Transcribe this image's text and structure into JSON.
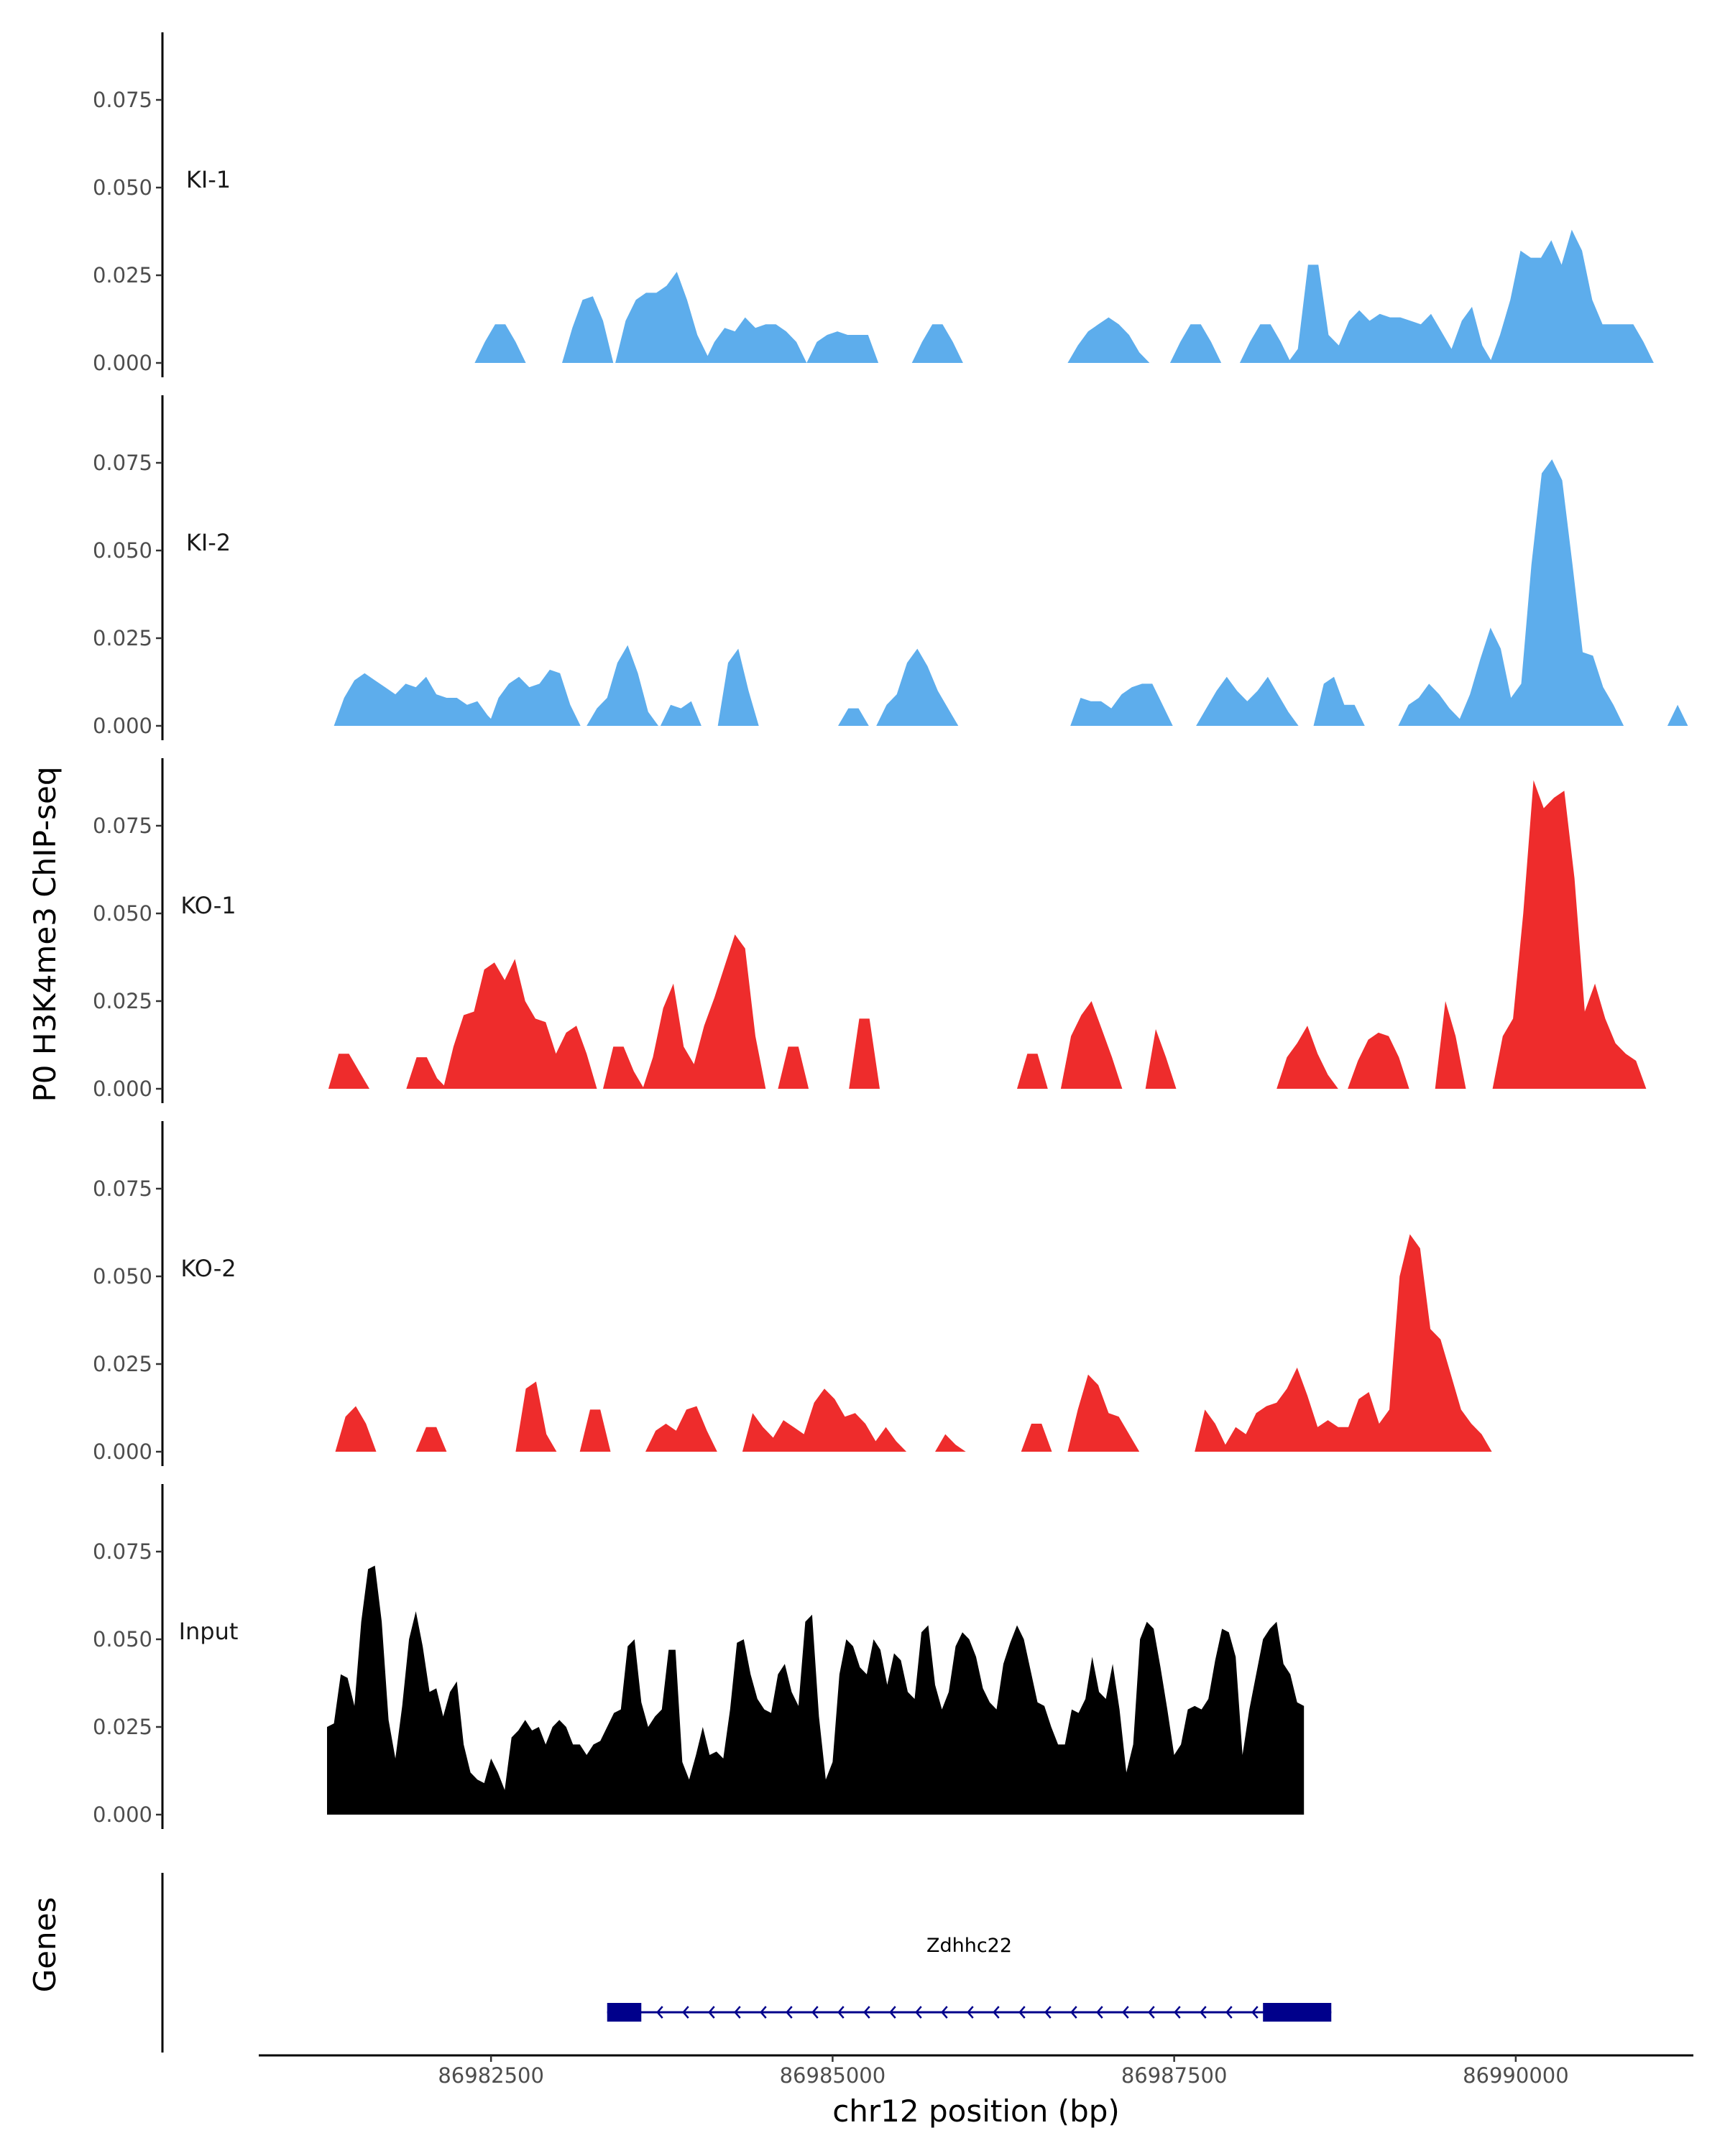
{
  "chart_data": {
    "type": "area",
    "ylabel": "P0 H3K4me3 ChIP-seq",
    "xlabel": "chr12 position (bp)",
    "gene_track_label": "Genes",
    "xlim": [
      86980800,
      86991300
    ],
    "x_ticks": [
      86982500,
      86985000,
      86987500,
      86990000
    ],
    "x_tick_labels": [
      "86982500",
      "86985000",
      "86987500",
      "86990000"
    ],
    "ylim": [
      0,
      0.095
    ],
    "y_ticks": [
      0,
      0.025,
      0.05,
      0.075
    ],
    "y_tick_labels": [
      "0.000",
      "0.025",
      "0.050",
      "0.075"
    ],
    "colors": {
      "KI": "#5DADEC",
      "KO": "#EE2C2C",
      "Input": "#000000",
      "gene": "#00008B"
    },
    "series": [
      {
        "name": "KI-1",
        "color": "#5DADEC",
        "segments": [
          {
            "x0": 86982380,
            "dx": 75,
            "values": [
              0.0,
              0.006,
              0.011,
              0.011,
              0.006,
              0.0
            ]
          },
          {
            "x0": 86983020,
            "dx": 75,
            "values": [
              0.0,
              0.01,
              0.018,
              0.019,
              0.012,
              0.0
            ]
          },
          {
            "x0": 86983410,
            "dx": 75,
            "values": [
              0.0,
              0.012,
              0.018,
              0.02,
              0.02,
              0.022,
              0.026,
              0.018,
              0.008,
              0.002,
              0.0
            ]
          },
          {
            "x0": 86984060,
            "dx": 75,
            "values": [
              0.0,
              0.006,
              0.01,
              0.009,
              0.013,
              0.01,
              0.011,
              0.011,
              0.009,
              0.006,
              0.0
            ]
          },
          {
            "x0": 86984810,
            "dx": 75,
            "values": [
              0.0,
              0.006,
              0.008,
              0.009,
              0.008,
              0.008,
              0.008,
              0.0
            ]
          },
          {
            "x0": 86985580,
            "dx": 75,
            "values": [
              0.0,
              0.006,
              0.011,
              0.011,
              0.006,
              0.0
            ]
          },
          {
            "x0": 86986720,
            "dx": 75,
            "values": [
              0.0,
              0.005,
              0.009,
              0.011,
              0.013,
              0.011,
              0.008,
              0.003,
              0.0
            ]
          },
          {
            "x0": 86987470,
            "dx": 75,
            "values": [
              0.0,
              0.006,
              0.011,
              0.011,
              0.006,
              0.0
            ]
          },
          {
            "x0": 86987980,
            "dx": 75,
            "values": [
              0.0,
              0.006,
              0.011,
              0.011,
              0.006,
              0.0
            ]
          },
          {
            "x0": 86988330,
            "dx": 75,
            "values": [
              0.0,
              0.004,
              0.028,
              0.028,
              0.008,
              0.005,
              0.012,
              0.015,
              0.012,
              0.014,
              0.013,
              0.013,
              0.012,
              0.011,
              0.014,
              0.009,
              0.004,
              0.012,
              0.016,
              0.005,
              0.0
            ]
          },
          {
            "x0": 86989810,
            "dx": 75,
            "values": [
              0.0,
              0.008,
              0.018,
              0.032,
              0.03,
              0.03,
              0.035,
              0.028,
              0.038,
              0.032,
              0.018,
              0.011,
              0.011,
              0.011,
              0.011,
              0.006,
              0.0
            ]
          }
        ]
      },
      {
        "name": "KI-2",
        "color": "#5DADEC",
        "segments": [
          {
            "x0": 86981350,
            "dx": 75,
            "values": [
              0.0,
              0.008,
              0.013,
              0.015,
              0.013,
              0.011,
              0.009,
              0.012,
              0.011,
              0.014,
              0.009,
              0.008,
              0.008,
              0.006,
              0.007,
              0.003,
              0.0
            ]
          },
          {
            "x0": 86982480,
            "dx": 75,
            "values": [
              0.0,
              0.008,
              0.012,
              0.014,
              0.011,
              0.012,
              0.016,
              0.015,
              0.006,
              0.0
            ]
          },
          {
            "x0": 86983200,
            "dx": 75,
            "values": [
              0.0,
              0.005,
              0.008,
              0.018,
              0.023,
              0.015,
              0.004,
              0.0
            ]
          },
          {
            "x0": 86983740,
            "dx": 75,
            "values": [
              0.0,
              0.006,
              0.005,
              0.007,
              0.0
            ]
          },
          {
            "x0": 86984160,
            "dx": 75,
            "values": [
              0.0,
              0.018,
              0.022,
              0.01,
              0.0
            ]
          },
          {
            "x0": 86985040,
            "dx": 75,
            "values": [
              0.0,
              0.005,
              0.005,
              0.0
            ]
          },
          {
            "x0": 86985320,
            "dx": 75,
            "values": [
              0.0,
              0.006,
              0.009,
              0.018,
              0.022,
              0.017,
              0.01,
              0.005,
              0.0
            ]
          },
          {
            "x0": 86986740,
            "dx": 75,
            "values": [
              0.0,
              0.008,
              0.007,
              0.007,
              0.005,
              0.009,
              0.011,
              0.012,
              0.012,
              0.006,
              0.0
            ]
          },
          {
            "x0": 86987660,
            "dx": 75,
            "values": [
              0.0,
              0.005,
              0.01,
              0.014,
              0.01,
              0.007,
              0.01,
              0.014,
              0.009,
              0.004,
              0.0
            ]
          },
          {
            "x0": 86988520,
            "dx": 75,
            "values": [
              0.0,
              0.012,
              0.014,
              0.006,
              0.006,
              0.0
            ]
          },
          {
            "x0": 86989140,
            "dx": 75,
            "values": [
              0.0,
              0.006,
              0.008,
              0.012,
              0.009,
              0.005,
              0.002,
              0.009,
              0.019,
              0.028,
              0.022,
              0.008,
              0.012,
              0.046,
              0.072,
              0.076,
              0.07,
              0.046,
              0.021,
              0.02,
              0.011,
              0.006,
              0.0
            ]
          },
          {
            "x0": 86991110,
            "dx": 75,
            "values": [
              0.0,
              0.006,
              0.0
            ]
          }
        ]
      },
      {
        "name": "KO-1",
        "color": "#EE2C2C",
        "segments": [
          {
            "x0": 86981310,
            "dx": 75,
            "values": [
              0.0,
              0.01,
              0.01,
              0.005,
              0.0
            ]
          },
          {
            "x0": 86981880,
            "dx": 75,
            "values": [
              0.0,
              0.009,
              0.009,
              0.003,
              0.0
            ]
          },
          {
            "x0": 86982150,
            "dx": 75,
            "values": [
              0.0,
              0.012,
              0.021,
              0.022,
              0.034,
              0.036,
              0.031,
              0.037,
              0.025,
              0.02,
              0.019,
              0.01,
              0.016,
              0.018,
              0.01,
              0.0
            ]
          },
          {
            "x0": 86983320,
            "dx": 75,
            "values": [
              0.0,
              0.012,
              0.012,
              0.005,
              0.0
            ]
          },
          {
            "x0": 86983610,
            "dx": 75,
            "values": [
              0.0,
              0.009,
              0.023,
              0.03,
              0.012,
              0.007,
              0.018,
              0.026,
              0.035,
              0.044,
              0.04,
              0.015,
              0.0
            ]
          },
          {
            "x0": 86984600,
            "dx": 75,
            "values": [
              0.0,
              0.012,
              0.012,
              0.0
            ]
          },
          {
            "x0": 86985120,
            "dx": 75,
            "values": [
              0.0,
              0.02,
              0.02,
              0.0
            ]
          },
          {
            "x0": 86986350,
            "dx": 75,
            "values": [
              0.0,
              0.01,
              0.01,
              0.0
            ]
          },
          {
            "x0": 86986670,
            "dx": 75,
            "values": [
              0.0,
              0.015,
              0.021,
              0.025,
              0.017,
              0.009,
              0.0
            ]
          },
          {
            "x0": 86987290,
            "dx": 75,
            "values": [
              0.0,
              0.017,
              0.009,
              0.0
            ]
          },
          {
            "x0": 86988250,
            "dx": 75,
            "values": [
              0.0,
              0.009,
              0.013,
              0.018,
              0.01,
              0.004,
              0.0
            ]
          },
          {
            "x0": 86988770,
            "dx": 75,
            "values": [
              0.0,
              0.008,
              0.014,
              0.016,
              0.015,
              0.009,
              0.0
            ]
          },
          {
            "x0": 86989410,
            "dx": 75,
            "values": [
              0.0,
              0.025,
              0.015,
              0.0
            ]
          },
          {
            "x0": 86989830,
            "dx": 75,
            "values": [
              0.0,
              0.015,
              0.02,
              0.05,
              0.088,
              0.08,
              0.083,
              0.085,
              0.06,
              0.022,
              0.03,
              0.02,
              0.013,
              0.01,
              0.008,
              0.0
            ]
          }
        ]
      },
      {
        "name": "KO-2",
        "color": "#EE2C2C",
        "segments": [
          {
            "x0": 86981360,
            "dx": 75,
            "values": [
              0.0,
              0.01,
              0.013,
              0.008,
              0.0
            ]
          },
          {
            "x0": 86981950,
            "dx": 75,
            "values": [
              0.0,
              0.007,
              0.007,
              0.0
            ]
          },
          {
            "x0": 86982680,
            "dx": 75,
            "values": [
              0.0,
              0.018,
              0.02,
              0.005,
              0.0
            ]
          },
          {
            "x0": 86983150,
            "dx": 75,
            "values": [
              0.0,
              0.012,
              0.012,
              0.0
            ]
          },
          {
            "x0": 86983630,
            "dx": 75,
            "values": [
              0.0,
              0.006,
              0.008,
              0.006,
              0.012,
              0.013,
              0.006,
              0.0
            ]
          },
          {
            "x0": 86984340,
            "dx": 75,
            "values": [
              0.0,
              0.011,
              0.007,
              0.004,
              0.009,
              0.007,
              0.005,
              0.014,
              0.018,
              0.015,
              0.01,
              0.011,
              0.008,
              0.003,
              0.007,
              0.003,
              0.0
            ]
          },
          {
            "x0": 86985750,
            "dx": 75,
            "values": [
              0.0,
              0.005,
              0.002,
              0.0
            ]
          },
          {
            "x0": 86986380,
            "dx": 75,
            "values": [
              0.0,
              0.008,
              0.008,
              0.0
            ]
          },
          {
            "x0": 86986720,
            "dx": 75,
            "values": [
              0.0,
              0.012,
              0.022,
              0.019,
              0.011,
              0.01,
              0.005,
              0.0
            ]
          },
          {
            "x0": 86987650,
            "dx": 75,
            "values": [
              0.0,
              0.012,
              0.008,
              0.002,
              0.007,
              0.005,
              0.011,
              0.013,
              0.014,
              0.018,
              0.024,
              0.016,
              0.007,
              0.009,
              0.007,
              0.007,
              0.015,
              0.017,
              0.008,
              0.012,
              0.05,
              0.062,
              0.058,
              0.035,
              0.032,
              0.022,
              0.012,
              0.008,
              0.005,
              0.0
            ]
          }
        ]
      },
      {
        "name": "Input",
        "color": "#000000",
        "segments": [
          {
            "x0": 86981300,
            "dx": 50,
            "values": [
              0.025,
              0.026,
              0.04,
              0.039,
              0.031,
              0.055,
              0.07,
              0.071,
              0.055,
              0.027,
              0.016,
              0.031,
              0.05,
              0.058,
              0.048,
              0.035,
              0.036,
              0.028,
              0.035,
              0.038,
              0.02,
              0.012,
              0.01,
              0.009,
              0.016,
              0.012,
              0.007,
              0.022,
              0.024,
              0.027,
              0.024,
              0.025,
              0.02,
              0.025,
              0.027,
              0.025,
              0.02,
              0.02,
              0.017,
              0.02,
              0.021,
              0.025,
              0.029,
              0.03,
              0.048,
              0.05,
              0.032,
              0.025,
              0.028,
              0.03,
              0.047,
              0.047,
              0.015,
              0.01,
              0.017,
              0.025,
              0.017,
              0.018,
              0.016,
              0.03,
              0.049,
              0.05,
              0.04,
              0.033,
              0.03,
              0.029,
              0.04,
              0.043,
              0.035,
              0.031,
              0.055,
              0.057,
              0.028,
              0.01,
              0.015,
              0.04,
              0.05,
              0.048,
              0.042,
              0.04,
              0.05,
              0.047,
              0.037,
              0.046,
              0.044,
              0.035,
              0.033,
              0.052,
              0.054,
              0.037,
              0.03,
              0.035,
              0.048,
              0.052,
              0.05,
              0.045,
              0.036,
              0.032,
              0.03,
              0.043,
              0.049,
              0.054,
              0.05,
              0.041,
              0.032,
              0.031,
              0.025,
              0.02,
              0.02,
              0.03,
              0.029,
              0.033,
              0.045,
              0.035,
              0.033,
              0.043,
              0.03,
              0.012,
              0.02,
              0.05,
              0.055,
              0.053,
              0.042,
              0.03,
              0.017,
              0.02,
              0.03,
              0.031,
              0.03,
              0.033,
              0.044,
              0.053,
              0.052,
              0.045,
              0.017,
              0.03,
              0.04,
              0.05,
              0.053,
              0.055,
              0.043,
              0.04,
              0.032,
              0.031
            ]
          }
        ]
      }
    ],
    "gene": {
      "name": "Zdhhc22",
      "strand": "-",
      "start": 86983350,
      "end": 86988650,
      "exons": [
        [
          86983350,
          86983600
        ],
        [
          86988150,
          86988650
        ]
      ]
    }
  }
}
